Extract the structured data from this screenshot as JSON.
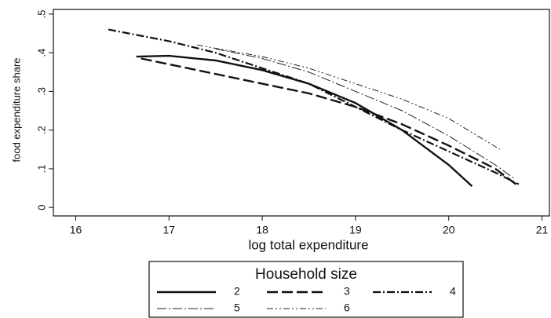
{
  "chart_data": {
    "type": "line",
    "x_label": "log total expenditure",
    "y_label": "food expenditure share",
    "legend_title": "Household size",
    "xlim": [
      15.76,
      21.08
    ],
    "ylim": [
      -0.022,
      0.512
    ],
    "xticks": [
      16,
      17,
      18,
      19,
      20,
      21
    ],
    "yticks": [
      0,
      {
        "value": 0.1,
        "label": ".1"
      },
      {
        "value": 0.2,
        "label": ".2"
      },
      {
        "value": 0.3,
        "label": ".3"
      },
      {
        "value": 0.4,
        "label": ".4"
      },
      {
        "value": 0.5,
        "label": ".5"
      }
    ],
    "series": [
      {
        "name": "2",
        "color": "#111111",
        "width": 2.4,
        "dash": "",
        "x": [
          16.65,
          17,
          17.5,
          18,
          18.5,
          19,
          19.5,
          20,
          20.25
        ],
        "values": [
          0.39,
          0.392,
          0.38,
          0.355,
          0.32,
          0.27,
          0.2,
          0.11,
          0.055
        ]
      },
      {
        "name": "3",
        "color": "#111111",
        "width": 2.4,
        "dash": "14 5",
        "x": [
          16.7,
          17,
          17.5,
          18,
          18.5,
          19,
          19.5,
          20,
          20.5,
          20.72
        ],
        "values": [
          0.385,
          0.37,
          0.345,
          0.32,
          0.295,
          0.26,
          0.215,
          0.16,
          0.1,
          0.06
        ]
      },
      {
        "name": "4",
        "color": "#111111",
        "width": 2.2,
        "dash": "10 3 2 3",
        "x": [
          16.35,
          17,
          17.5,
          18,
          18.5,
          19,
          19.5,
          20,
          20.5,
          20.75
        ],
        "values": [
          0.46,
          0.43,
          0.4,
          0.36,
          0.32,
          0.26,
          0.2,
          0.145,
          0.09,
          0.06
        ]
      },
      {
        "name": "5",
        "color": "#222222",
        "width": 1,
        "dash": "12 3 2 3",
        "x": [
          17.5,
          18,
          18.5,
          19,
          19.5,
          20,
          20.5,
          20.7
        ],
        "values": [
          0.41,
          0.385,
          0.35,
          0.3,
          0.25,
          0.185,
          0.11,
          0.075
        ]
      },
      {
        "name": "6",
        "color": "#222222",
        "width": 1,
        "dash": "8 3 2 3 2 3",
        "x": [
          17.3,
          18,
          18.5,
          19,
          19.5,
          20,
          20.55
        ],
        "values": [
          0.42,
          0.39,
          0.36,
          0.32,
          0.28,
          0.23,
          0.15
        ]
      }
    ]
  }
}
